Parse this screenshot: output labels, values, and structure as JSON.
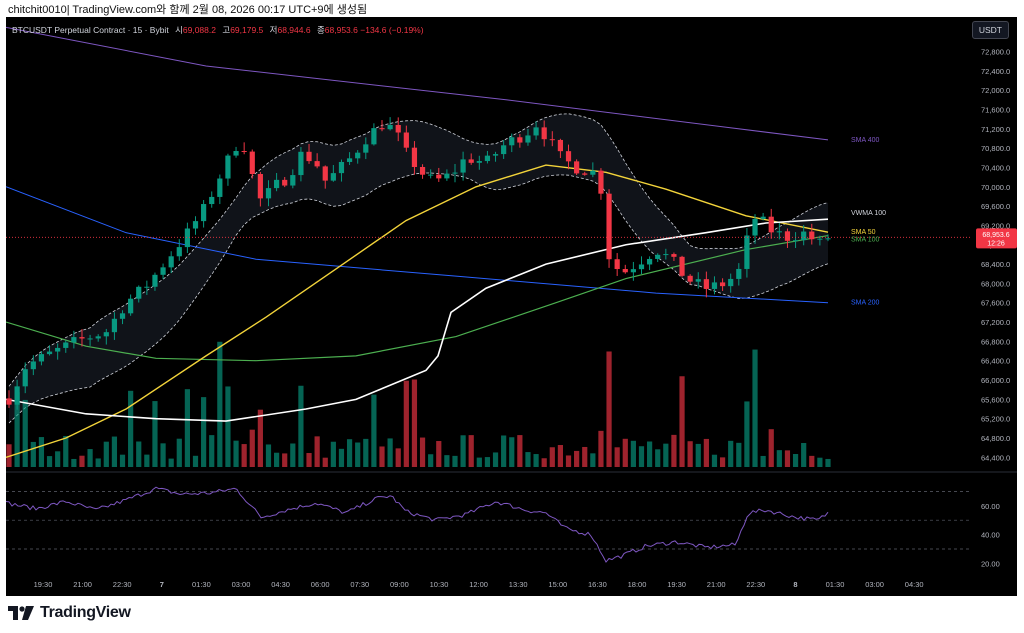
{
  "caption": "chitchit0010| TradingView.com와 함께 2월 08, 2026 00:17 UTC+9에 생성됨",
  "legend": {
    "title": "BTCUSDT Perpetual Contract · 15 · Bybit",
    "open_label": "시",
    "open": "69,088.2",
    "high_label": "고",
    "high": "69,179.5",
    "low_label": "저",
    "low": "68,944.6",
    "close_label": "종",
    "close": "68,953.6",
    "change": "−134.6 (−0.19%)"
  },
  "unit_button": "USDT",
  "brand": "TradingView",
  "icons": {
    "brand": "tradingview-logo-icon"
  },
  "colors": {
    "up": "#089981",
    "down": "#f23645",
    "background": "#000000",
    "sma50": "#f2d33a",
    "sma100": "#4caf50",
    "sma200": "#2962ff",
    "sma400": "#7e57c2",
    "vwma100": "#ffffff",
    "rsi": "#7e57c2",
    "bands": "#d1d4dc"
  },
  "chart_data": {
    "type": "candlestick",
    "symbol": "BTCUSDT Perpetual Contract",
    "interval": "15",
    "exchange": "Bybit",
    "x_tick_labels": [
      "19:30",
      "21:00",
      "22:30",
      "7",
      "01:30",
      "03:00",
      "04:30",
      "06:00",
      "07:30",
      "09:00",
      "10:30",
      "12:00",
      "13:30",
      "15:00",
      "16:30",
      "18:00",
      "19:30",
      "21:00",
      "22:30",
      "8",
      "01:30",
      "03:00",
      "04:30"
    ],
    "y_tick_labels": [
      "72,800.0",
      "72,400.0",
      "72,000.0",
      "71,600.0",
      "71,200.0",
      "70,800.0",
      "70,400.0",
      "70,000.0",
      "69,600.0",
      "69,200.0",
      "68,800.0",
      "68,400.0",
      "68,000.0",
      "67,600.0",
      "67,200.0",
      "66,800.0",
      "66,400.0",
      "66,000.0",
      "65,600.0",
      "65,200.0",
      "64,800.0",
      "64,400.0"
    ],
    "ylim": [
      64200,
      73100
    ],
    "last_price": "68,953.6",
    "countdown": "12:26",
    "indicators": [
      {
        "name": "VWMA 100",
        "last": 69330
      },
      {
        "name": "SMA 50",
        "last": 69060
      },
      {
        "name": "SMA 100",
        "last": 68990
      },
      {
        "name": "SMA 200",
        "last": 67600
      },
      {
        "name": "SMA 400",
        "last": 70970
      }
    ],
    "price_anchors": [
      {
        "x": 0,
        "p": 65500
      },
      {
        "x": 20,
        "p": 66300
      },
      {
        "x": 50,
        "p": 66600
      },
      {
        "x": 70,
        "p": 66800
      },
      {
        "x": 100,
        "p": 67000
      },
      {
        "x": 120,
        "p": 67600
      },
      {
        "x": 140,
        "p": 67950
      },
      {
        "x": 150,
        "p": 68200
      },
      {
        "x": 180,
        "p": 69000
      },
      {
        "x": 200,
        "p": 69600
      },
      {
        "x": 218,
        "p": 70400
      },
      {
        "x": 230,
        "p": 70850
      },
      {
        "x": 238,
        "p": 70850
      },
      {
        "x": 248,
        "p": 70100
      },
      {
        "x": 255,
        "p": 69700
      },
      {
        "x": 268,
        "p": 70000
      },
      {
        "x": 282,
        "p": 70200
      },
      {
        "x": 296,
        "p": 70700
      },
      {
        "x": 310,
        "p": 70500
      },
      {
        "x": 320,
        "p": 70100
      },
      {
        "x": 330,
        "p": 70300
      },
      {
        "x": 345,
        "p": 70600
      },
      {
        "x": 360,
        "p": 71000
      },
      {
        "x": 375,
        "p": 71300
      },
      {
        "x": 388,
        "p": 71200
      },
      {
        "x": 400,
        "p": 70700
      },
      {
        "x": 415,
        "p": 70300
      },
      {
        "x": 428,
        "p": 70100
      },
      {
        "x": 445,
        "p": 70250
      },
      {
        "x": 460,
        "p": 70600
      },
      {
        "x": 480,
        "p": 70500
      },
      {
        "x": 500,
        "p": 70900
      },
      {
        "x": 520,
        "p": 71100
      },
      {
        "x": 530,
        "p": 71300
      },
      {
        "x": 540,
        "p": 71050
      },
      {
        "x": 555,
        "p": 70600
      },
      {
        "x": 570,
        "p": 70400
      },
      {
        "x": 588,
        "p": 70300
      },
      {
        "x": 596,
        "p": 69900
      },
      {
        "x": 602,
        "p": 68600
      },
      {
        "x": 615,
        "p": 68200
      },
      {
        "x": 630,
        "p": 68400
      },
      {
        "x": 650,
        "p": 68700
      },
      {
        "x": 665,
        "p": 68500
      },
      {
        "x": 680,
        "p": 68100
      },
      {
        "x": 700,
        "p": 67900
      },
      {
        "x": 720,
        "p": 68000
      },
      {
        "x": 735,
        "p": 68300
      },
      {
        "x": 742,
        "p": 69000
      },
      {
        "x": 750,
        "p": 69400
      },
      {
        "x": 765,
        "p": 69100
      },
      {
        "x": 780,
        "p": 68950
      },
      {
        "x": 800,
        "p": 69050
      },
      {
        "x": 812,
        "p": 68800
      },
      {
        "x": 822,
        "p": 68950
      }
    ],
    "rsi": {
      "y_tick_labels": [
        "60.00",
        "40.00",
        "20.00"
      ],
      "ylim": [
        14,
        80
      ],
      "levels": [
        70,
        50,
        30
      ],
      "anchors": [
        {
          "x": 0,
          "p": 62
        },
        {
          "x": 30,
          "p": 58
        },
        {
          "x": 60,
          "p": 63
        },
        {
          "x": 90,
          "p": 57
        },
        {
          "x": 120,
          "p": 64
        },
        {
          "x": 150,
          "p": 72
        },
        {
          "x": 175,
          "p": 68
        },
        {
          "x": 205,
          "p": 69
        },
        {
          "x": 230,
          "p": 72
        },
        {
          "x": 255,
          "p": 52
        },
        {
          "x": 280,
          "p": 57
        },
        {
          "x": 310,
          "p": 62
        },
        {
          "x": 340,
          "p": 55
        },
        {
          "x": 370,
          "p": 65
        },
        {
          "x": 385,
          "p": 67
        },
        {
          "x": 400,
          "p": 56
        },
        {
          "x": 430,
          "p": 50
        },
        {
          "x": 460,
          "p": 54
        },
        {
          "x": 490,
          "p": 63
        },
        {
          "x": 520,
          "p": 57
        },
        {
          "x": 540,
          "p": 55
        },
        {
          "x": 560,
          "p": 44
        },
        {
          "x": 585,
          "p": 40
        },
        {
          "x": 600,
          "p": 22
        },
        {
          "x": 615,
          "p": 25
        },
        {
          "x": 640,
          "p": 32
        },
        {
          "x": 670,
          "p": 35
        },
        {
          "x": 700,
          "p": 31
        },
        {
          "x": 730,
          "p": 33
        },
        {
          "x": 742,
          "p": 55
        },
        {
          "x": 760,
          "p": 57
        },
        {
          "x": 790,
          "p": 52
        },
        {
          "x": 812,
          "p": 50
        },
        {
          "x": 822,
          "p": 55
        }
      ]
    }
  }
}
